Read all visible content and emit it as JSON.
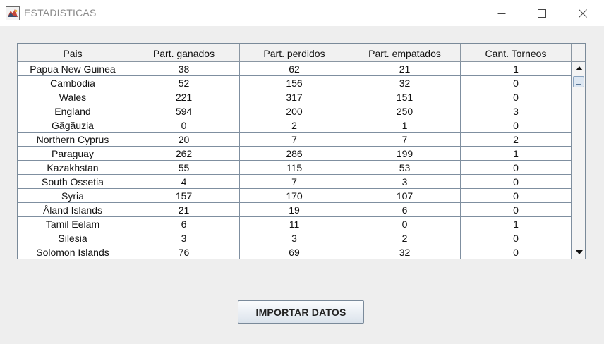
{
  "window": {
    "title": "ESTADISTICAS"
  },
  "table": {
    "columns": [
      "Pais",
      "Part. ganados",
      "Part. perdidos",
      "Part. empatados",
      "Cant. Torneos"
    ],
    "rows": [
      [
        "Papua New Guinea",
        "38",
        "62",
        "21",
        "1"
      ],
      [
        "Cambodia",
        "52",
        "156",
        "32",
        "0"
      ],
      [
        "Wales",
        "221",
        "317",
        "151",
        "0"
      ],
      [
        "England",
        "594",
        "200",
        "250",
        "3"
      ],
      [
        "Găgăuzia",
        "0",
        "2",
        "1",
        "0"
      ],
      [
        "Northern Cyprus",
        "20",
        "7",
        "7",
        "2"
      ],
      [
        "Paraguay",
        "262",
        "286",
        "199",
        "1"
      ],
      [
        "Kazakhstan",
        "55",
        "115",
        "53",
        "0"
      ],
      [
        "South Ossetia",
        "4",
        "7",
        "3",
        "0"
      ],
      [
        "Syria",
        "157",
        "170",
        "107",
        "0"
      ],
      [
        "Åland Islands",
        "21",
        "19",
        "6",
        "0"
      ],
      [
        "Tamil Eelam",
        "6",
        "11",
        "0",
        "1"
      ],
      [
        "Silesia",
        "3",
        "3",
        "2",
        "0"
      ],
      [
        "Solomon Islands",
        "76",
        "69",
        "32",
        "0"
      ]
    ]
  },
  "buttons": {
    "import_label": "IMPORTAR DATOS"
  },
  "icons": {
    "app": "java-app-icon",
    "minimize": "minimize-icon",
    "maximize": "maximize-icon",
    "close": "close-icon",
    "scroll_up": "arrow-up-icon",
    "scroll_down": "arrow-down-icon"
  },
  "colors": {
    "window_bg": "#eeeeee",
    "titlebar_bg": "#ffffff",
    "grid_line": "#7f8fa0",
    "header_bg": "#f1f1f1"
  }
}
